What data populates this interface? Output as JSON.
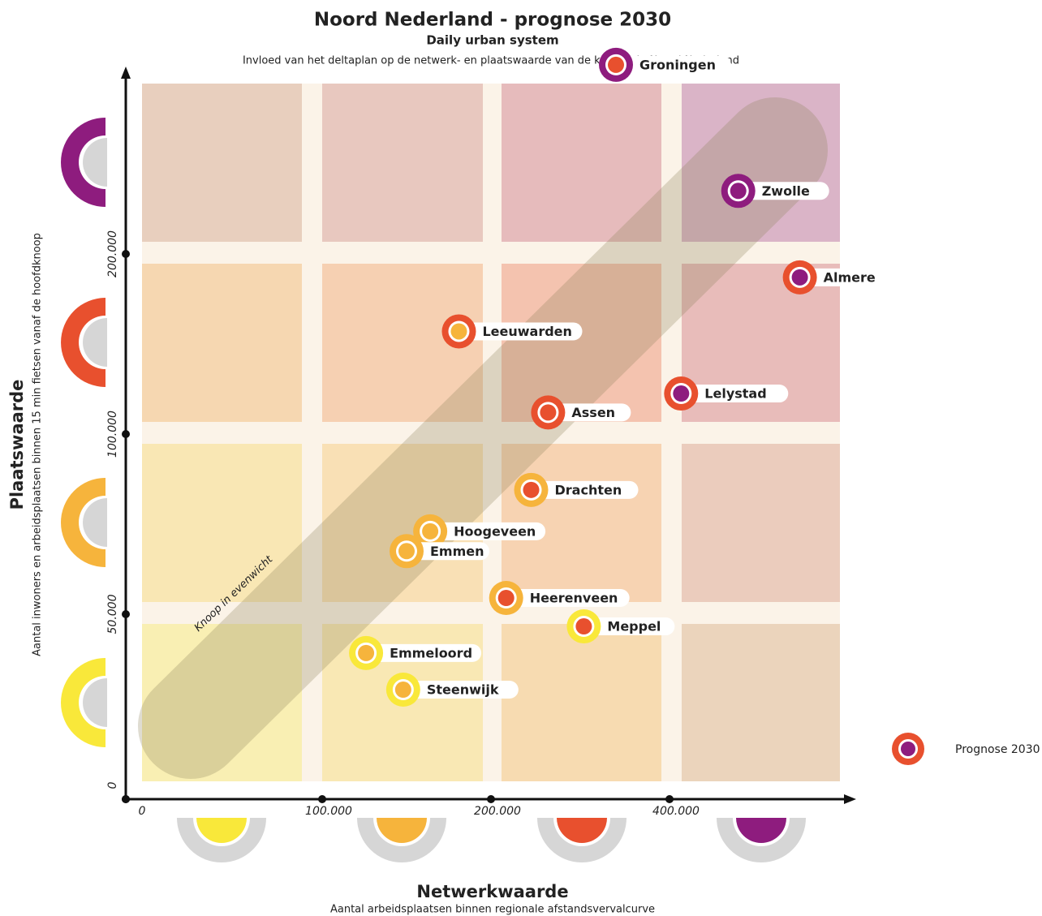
{
  "chart_data": {
    "type": "scatter",
    "title": "Noord Nederland - prognose 2030",
    "subtitle": "Daily urban system",
    "description": "Invloed van het deltaplan op de netwerk- en plaatswaarde van de knopen in Noord Nederland",
    "x_label": "Netwerkwaarde",
    "x_sublabel": "Aantal arbeidsplaatsen binnen regionale afstandsvervalcurve",
    "y_label": "Plaatswaarde",
    "y_sublabel": "Aantal inwoners en arbeidsplaatsen binnen 15 min fietsen vanaf de hoofdknoop",
    "annotation": "Knoop in evenwicht",
    "legend": "Prognose 2030",
    "xlim": [
      0,
      605000
    ],
    "ylim": [
      0,
      405000
    ],
    "xticks": [
      0,
      {
        "value": 100000,
        "label": "100.000"
      },
      {
        "value": 200000,
        "label": "200.000"
      },
      {
        "value": 400000,
        "label": "400.000"
      }
    ],
    "yticks": [
      0,
      {
        "value": 50000,
        "label": "50.000"
      },
      {
        "value": 100000,
        "label": "100.000"
      },
      {
        "value": 200000,
        "label": "200.000"
      }
    ],
    "points": [
      {
        "name": "Groningen",
        "x": 340000,
        "y": 305000,
        "ring": "#8e1c7e",
        "dot": "#e8502e"
      },
      {
        "name": "Zwolle",
        "x": 477000,
        "y": 235000,
        "ring": "#8e1c7e",
        "dot": "#8e1c7e"
      },
      {
        "name": "Almere",
        "x": 546000,
        "y": 187000,
        "ring": "#e8502e",
        "dot": "#8e1c7e"
      },
      {
        "name": "Leeuwarden",
        "x": 181000,
        "y": 157000,
        "ring": "#e8502e",
        "dot": "#f6b43c"
      },
      {
        "name": "Lelystad",
        "x": 413000,
        "y": 122500,
        "ring": "#e8502e",
        "dot": "#8e1c7e"
      },
      {
        "name": "Assen",
        "x": 264000,
        "y": 112000,
        "ring": "#e8502e",
        "dot": "#e8502e"
      },
      {
        "name": "Drachten",
        "x": 245000,
        "y": 84500,
        "ring": "#f6b43c",
        "dot": "#e8502e"
      },
      {
        "name": "Hoogeveen",
        "x": 164000,
        "y": 73000,
        "ring": "#f6b43c",
        "dot": "#f6b43c"
      },
      {
        "name": "Emmen",
        "x": 150000,
        "y": 67500,
        "ring": "#f6b43c",
        "dot": "#f6b43c"
      },
      {
        "name": "Heerenveen",
        "x": 217000,
        "y": 54500,
        "ring": "#f6b43c",
        "dot": "#e8502e"
      },
      {
        "name": "Meppel",
        "x": 304000,
        "y": 46700,
        "ring": "#f9e83a",
        "dot": "#e8502e"
      },
      {
        "name": "Emmeloord",
        "x": 126000,
        "y": 39500,
        "ring": "#f9e83a",
        "dot": "#f6b43c"
      },
      {
        "name": "Steenwijk",
        "x": 148000,
        "y": 29600,
        "ring": "#f9e83a",
        "dot": "#f6b43c"
      }
    ],
    "legend_ring": "#e8502e",
    "legend_dot": "#8e1c7e"
  }
}
